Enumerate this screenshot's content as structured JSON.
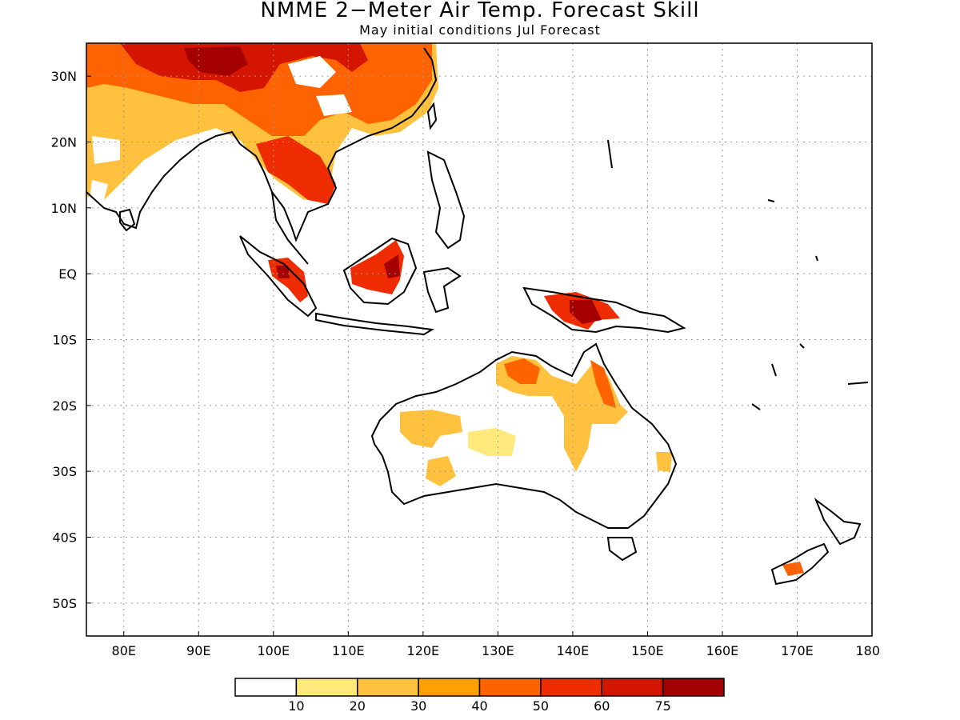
{
  "title": "NMME 2−Meter Air Temp. Forecast Skill",
  "subtitle": "May initial conditions  Jul Forecast",
  "map": {
    "lon_range": [
      75,
      180
    ],
    "lat_range": [
      -55,
      35
    ],
    "lon_ticks": [
      {
        "value": 80,
        "label": "80E"
      },
      {
        "value": 90,
        "label": "90E"
      },
      {
        "value": 100,
        "label": "100E"
      },
      {
        "value": 110,
        "label": "110E"
      },
      {
        "value": 120,
        "label": "120E"
      },
      {
        "value": 130,
        "label": "130E"
      },
      {
        "value": 140,
        "label": "140E"
      },
      {
        "value": 150,
        "label": "150E"
      },
      {
        "value": 160,
        "label": "160E"
      },
      {
        "value": 170,
        "label": "170E"
      },
      {
        "value": 180,
        "label": "180"
      }
    ],
    "lat_ticks": [
      {
        "value": 30,
        "label": "30N"
      },
      {
        "value": 20,
        "label": "20N"
      },
      {
        "value": 10,
        "label": "10N"
      },
      {
        "value": 0,
        "label": "EQ"
      },
      {
        "value": -10,
        "label": "10S"
      },
      {
        "value": -20,
        "label": "20S"
      },
      {
        "value": -30,
        "label": "30S"
      },
      {
        "value": -40,
        "label": "40S"
      },
      {
        "value": -50,
        "label": "50S"
      }
    ],
    "grid": "dotted"
  },
  "colorbar": {
    "colors": [
      "#ffffff",
      "#ffe97a",
      "#ffc13e",
      "#ffa000",
      "#ff6200",
      "#ef2b00",
      "#d41500",
      "#a40000"
    ],
    "labels": [
      "10",
      "20",
      "30",
      "40",
      "50",
      "60",
      "75"
    ]
  }
}
